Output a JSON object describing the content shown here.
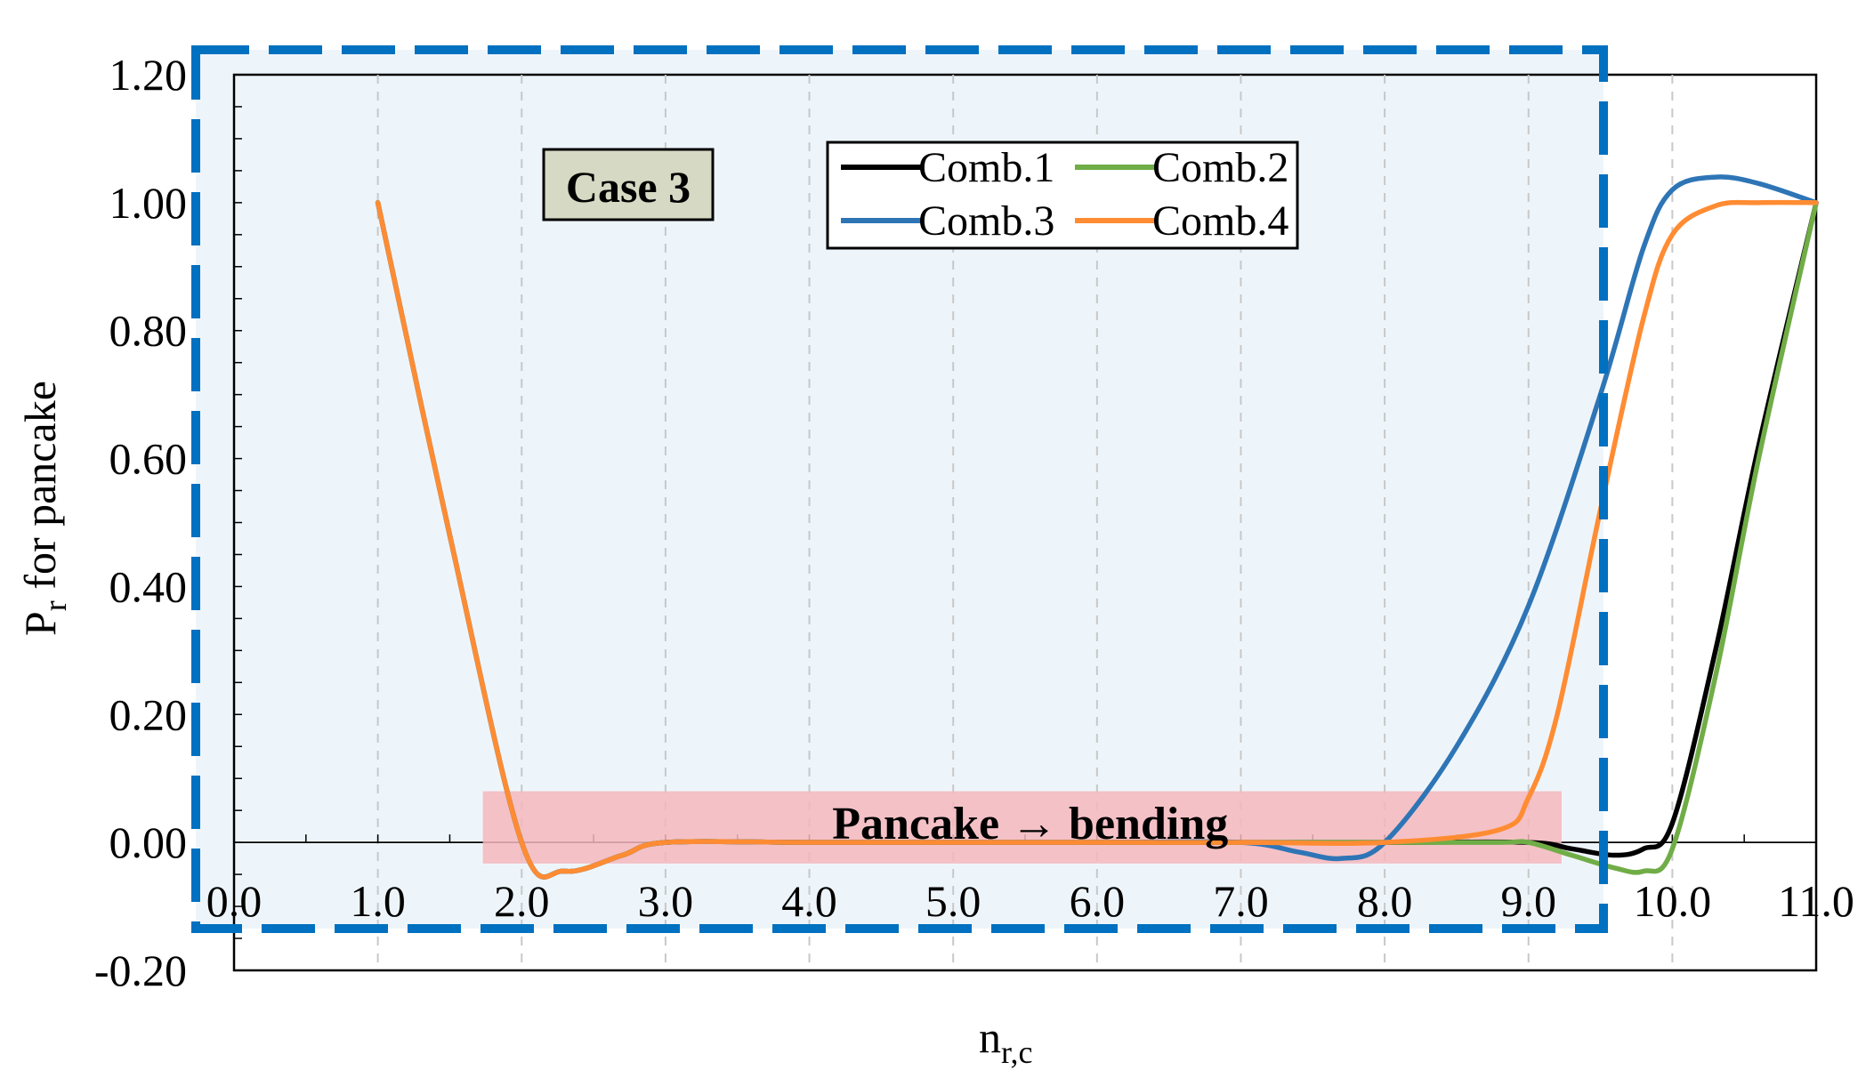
{
  "chart_data": {
    "type": "line",
    "xlabel": "n",
    "xlabel_sub": "r,c",
    "ylabel_main": "P",
    "ylabel_sub": "r",
    "ylabel_rest": " for pancake",
    "xlim": [
      0,
      11
    ],
    "ylim": [
      -0.2,
      1.2
    ],
    "x_ticks": [
      "0.0",
      "1.0",
      "2.0",
      "3.0",
      "4.0",
      "5.0",
      "6.0",
      "7.0",
      "8.0",
      "9.0",
      "10.0",
      "11.0"
    ],
    "y_ticks": [
      "-0.20",
      "0.00",
      "0.20",
      "0.40",
      "0.60",
      "0.80",
      "1.00",
      "1.20"
    ],
    "grid": "vertical dashed",
    "legend_placement": "top-center",
    "case_label": "Case 3",
    "band_label": "Pancake → bending",
    "series": [
      {
        "name": "Comb.1",
        "color": "#000000",
        "x": [
          1,
          1.5,
          2.0,
          2.3,
          2.7,
          3.0,
          4,
          5,
          6,
          7,
          8,
          9,
          9.3,
          9.6,
          9.8,
          10.0,
          10.3,
          10.6,
          11.0
        ],
        "y": [
          1.0,
          0.48,
          0.0,
          -0.045,
          -0.02,
          0.0,
          0.0,
          0.0,
          0.0,
          0.0,
          0.0,
          0.0,
          -0.01,
          -0.02,
          -0.01,
          0.03,
          0.3,
          0.62,
          1.0
        ]
      },
      {
        "name": "Comb.2",
        "color": "#70ad47",
        "x": [
          1,
          1.5,
          2.0,
          2.3,
          2.7,
          3.0,
          4,
          5,
          6,
          7,
          8,
          8.8,
          9.0,
          9.3,
          9.6,
          9.8,
          10.0,
          10.3,
          10.6,
          11.0
        ],
        "y": [
          1.0,
          0.48,
          0.0,
          -0.045,
          -0.02,
          0.0,
          0.0,
          0.0,
          0.0,
          0.0,
          0.0,
          0.0,
          0.0,
          -0.02,
          -0.04,
          -0.045,
          -0.01,
          0.26,
          0.6,
          1.0
        ]
      },
      {
        "name": "Comb.3",
        "color": "#2e75b6",
        "x": [
          1,
          1.5,
          2.0,
          2.3,
          2.7,
          3.0,
          4,
          5,
          6,
          7.0,
          7.4,
          7.7,
          8.0,
          8.5,
          9.0,
          9.5,
          9.8,
          10.0,
          10.3,
          10.6,
          11.0
        ],
        "y": [
          1.0,
          0.48,
          0.0,
          -0.045,
          -0.02,
          0.0,
          0.0,
          0.0,
          0.0,
          0.0,
          -0.015,
          -0.025,
          0.0,
          0.15,
          0.37,
          0.7,
          0.93,
          1.02,
          1.04,
          1.03,
          1.0
        ]
      },
      {
        "name": "Comb.4",
        "color": "#ff8c33",
        "x": [
          1,
          1.5,
          2.0,
          2.3,
          2.7,
          3.0,
          4,
          5,
          6,
          7,
          8,
          8.8,
          9.0,
          9.2,
          9.5,
          9.8,
          10.0,
          10.3,
          10.6,
          11.0
        ],
        "y": [
          1.0,
          0.48,
          0.0,
          -0.045,
          -0.02,
          0.0,
          0.0,
          0.0,
          0.0,
          0.0,
          0.0,
          0.02,
          0.07,
          0.2,
          0.52,
          0.82,
          0.95,
          0.995,
          1.0,
          1.0
        ]
      }
    ]
  }
}
